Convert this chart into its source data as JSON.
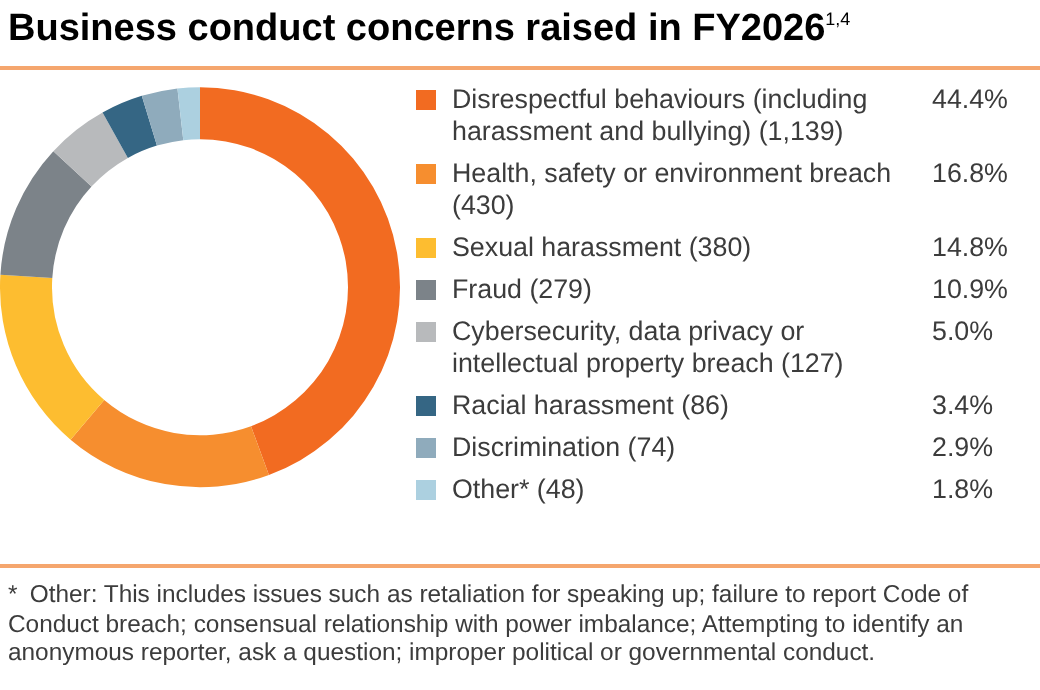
{
  "chart_data": {
    "type": "donut",
    "title": "Business conduct concerns raised in FY2026$^{1,4}$",
    "categories": [
      "Disrespectful behaviours (including harassment and bullying) (1,139)",
      "Health, safety or environment breach (430)",
      "Sexual harassment (380)",
      "Fraud (279)",
      "Cybersecurity, data privacy or intellectual property breach (127)",
      "Racial harassment (86)",
      "Discrimination (74)",
      "Other* (48)"
    ],
    "values": [
      44.4,
      16.8,
      14.8,
      10.9,
      5.0,
      3.4,
      2.9,
      1.8
    ],
    "value_labels": [
      "44.4%",
      "16.8%",
      "14.8%",
      "10.9%",
      "5.0%",
      "3.4%",
      "2.9%",
      "1.8%"
    ],
    "colors": [
      "#f26b21",
      "#f68e2f",
      "#fdbd30",
      "#7c8389",
      "#b8babc",
      "#356684",
      "#8fabbc",
      "#acd0e0"
    ],
    "legend": "right",
    "annotations": [
      "* Other: This includes issues such as retaliation for speaking up; failure to report Code of Conduct breach; consensual relationship with power imbalance; Attempting to identify an anonymous reporter, ask a question; improper political or governmental conduct."
    ]
  }
}
